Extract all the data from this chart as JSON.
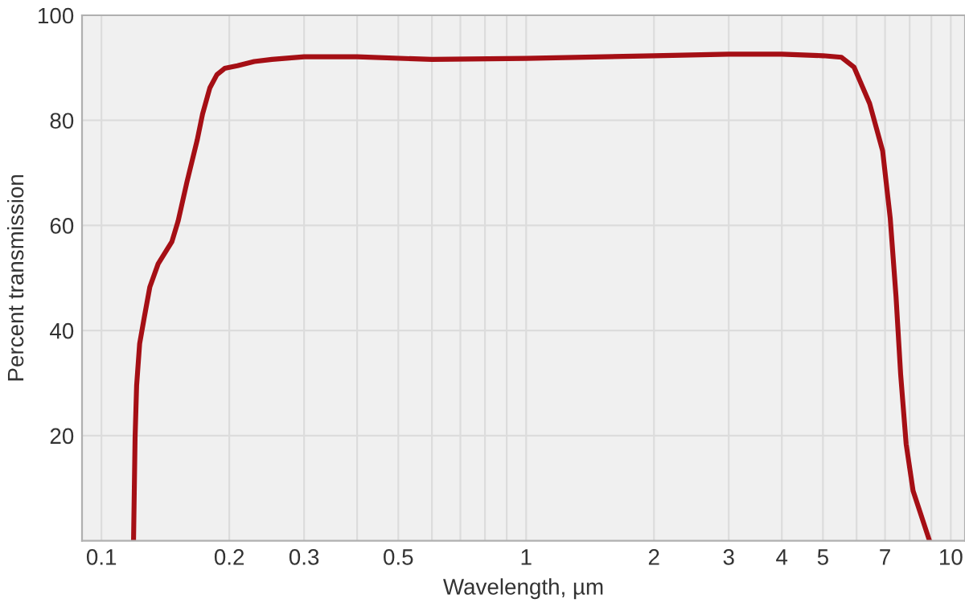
{
  "chart_data": {
    "type": "line",
    "xlabel": "Wavelength, µm",
    "ylabel": "Percent transmission",
    "log": "x",
    "grid": true,
    "marker": "none",
    "line_style": "solid",
    "xlim": [
      0.09,
      10.8
    ],
    "ylim": [
      0,
      100
    ],
    "xticks": [
      0.1,
      0.2,
      0.3,
      {
        "value": 0.4,
        "label": null
      },
      0.5,
      {
        "value": 0.6,
        "label": null
      },
      {
        "value": 0.7,
        "label": null
      },
      {
        "value": 0.8,
        "label": null
      },
      {
        "value": 0.9,
        "label": null
      },
      1,
      2,
      3,
      4,
      5,
      {
        "value": 6,
        "label": null
      },
      7,
      {
        "value": 8,
        "label": null
      },
      {
        "value": 9,
        "label": null
      },
      10
    ],
    "yticks": [
      20,
      40,
      60,
      80,
      100
    ],
    "series": [
      {
        "color": "#a50f15",
        "x": [
          0.119,
          0.12,
          0.121,
          0.123,
          0.126,
          0.13,
          0.136,
          0.1465,
          0.1515,
          0.159,
          0.168,
          0.173,
          0.18,
          0.187,
          0.195,
          0.209,
          0.229,
          0.252,
          0.3,
          0.4,
          0.6,
          1,
          2,
          3,
          4,
          5,
          5.53,
          5.92,
          6.44,
          6.91,
          7.2,
          7.43,
          7.62,
          7.85,
          8.15,
          8.91
        ],
        "values": [
          0,
          19.6,
          29.5,
          37.5,
          42.3,
          48.3,
          52.7,
          56.9,
          60.8,
          68.3,
          76.2,
          81.2,
          86.2,
          88.7,
          89.9,
          90.4,
          91.2,
          91.6,
          92.1,
          92.1,
          91.6,
          91.8,
          92.3,
          92.6,
          92.6,
          92.3,
          92.0,
          90.1,
          83.2,
          74.2,
          61.4,
          46.5,
          31.6,
          18.4,
          9.5,
          0
        ]
      }
    ]
  }
}
